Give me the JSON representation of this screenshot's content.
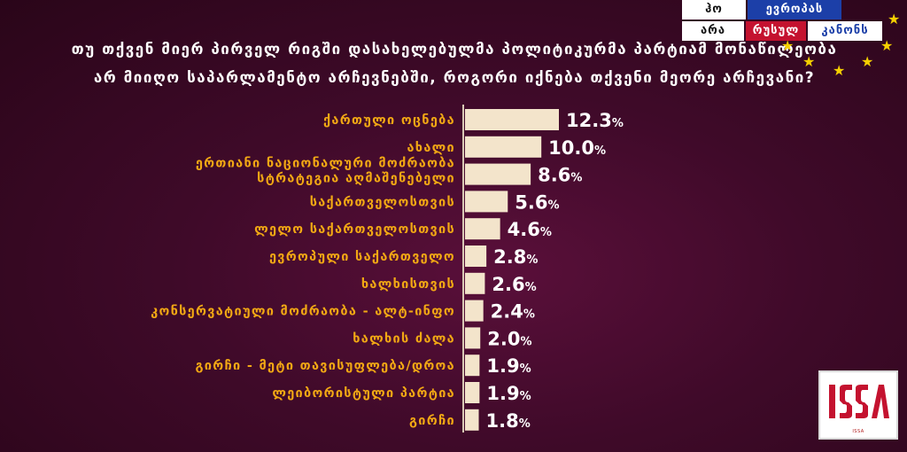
{
  "question": {
    "line1": "თუ თქვენ მიერ პირველ რიგში დასახელებულმა პოლიტიკურმა პარტიამ მონაწილეობა",
    "line2": "არ მიიღო საპარლამენტო არჩევნებში, როგორი იქნება თქვენი მეორე არჩევანი?"
  },
  "badge": {
    "cell1": "ჰო",
    "cell2": "ევროპას",
    "cell3": "არა",
    "cell4": "რუსულ",
    "cell5": "კანონს",
    "colors": {
      "blue": "#1c3fa8",
      "red": "#c4122f",
      "star": "#f5d000"
    }
  },
  "chart_data": {
    "type": "bar",
    "orientation": "horizontal",
    "unit": "%",
    "categories": [
      [
        "ქართული ოცნება"
      ],
      [
        "ახალი"
      ],
      [
        "ერთიანი ნაციონალური მოძრაობა",
        "სტრატეგია აღმაშენებელი"
      ],
      [
        "საქართველოსთვის"
      ],
      [
        "ლელო საქართველოსთვის"
      ],
      [
        "ევროპული საქართველო"
      ],
      [
        "ხალხისთვის"
      ],
      [
        "კონსერვატიული მოძრაობა - ალტ-ინფო"
      ],
      [
        "ხალხის ძალა"
      ],
      [
        "გირჩი - მეტი თავისუფლება/დროა"
      ],
      [
        "ლეიბორისტული პარტია"
      ],
      [
        "გირჩი"
      ]
    ],
    "values": [
      12.3,
      10.0,
      8.6,
      5.6,
      4.6,
      2.8,
      2.6,
      2.4,
      2.0,
      1.9,
      1.9,
      1.8
    ],
    "value_labels": [
      "12.3",
      "10.0",
      "8.6",
      "5.6",
      "4.6",
      "2.8",
      "2.6",
      "2.4",
      "2.0",
      "1.9",
      "1.9",
      "1.8"
    ],
    "xlim": [
      0,
      12.3
    ],
    "grid": false,
    "colors": {
      "bar": "#f3e4cb",
      "label": "#f2a814",
      "axis": "#d9c9b5",
      "value": "#ffffff"
    }
  },
  "logo": {
    "text": "ISSA"
  }
}
